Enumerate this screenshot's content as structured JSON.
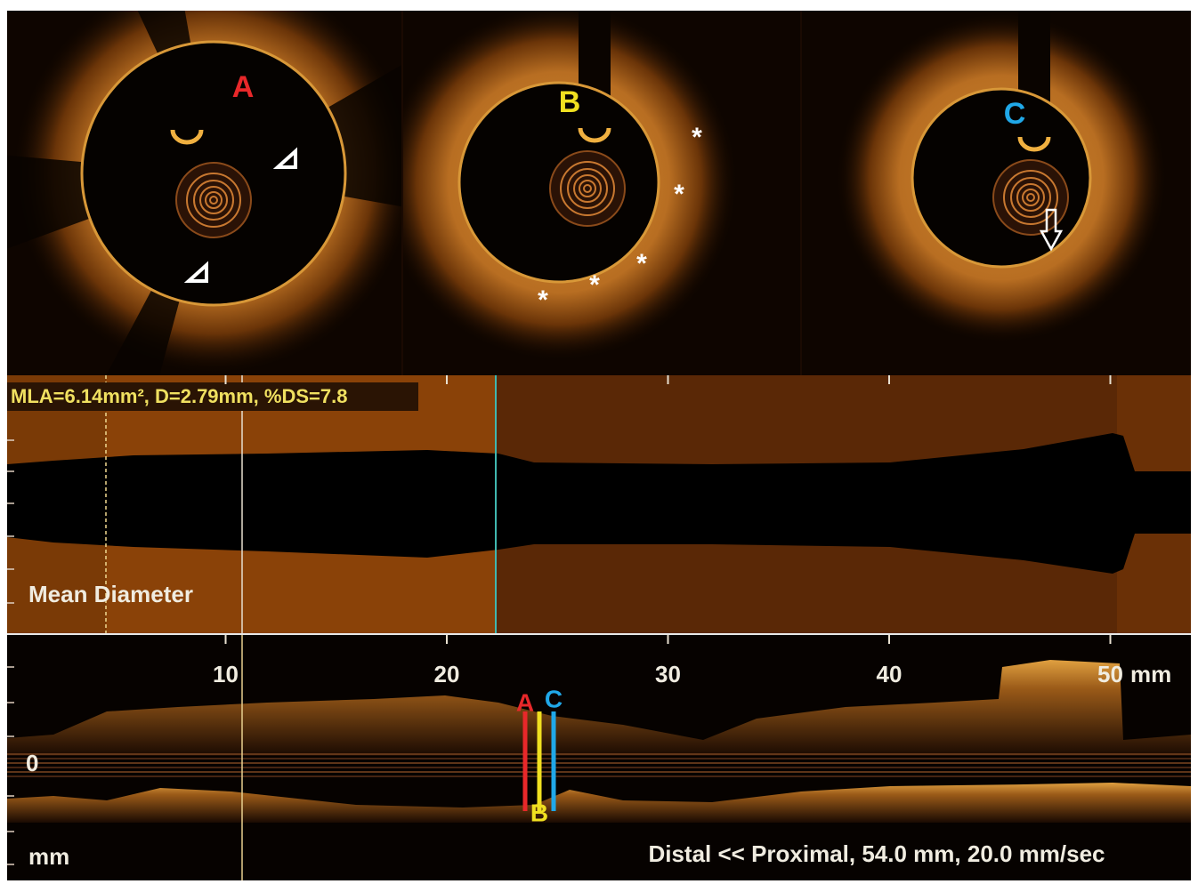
{
  "cross_sections": [
    {
      "label": "A"
    },
    {
      "label": "B",
      "annotations": [
        "*",
        "*",
        "*",
        "*",
        "*"
      ]
    },
    {
      "label": "C"
    }
  ],
  "diameter_profile": {
    "measurement": "MLA=6.14mm², D=2.79mm, %DS=7.8",
    "title": "Mean Diameter"
  },
  "longitudinal_view": {
    "length_ticks": [
      10,
      20,
      30,
      40,
      50
    ],
    "length_unit": "mm",
    "depth_zero": 0,
    "depth_unit": "mm",
    "markers": [
      "A",
      "B",
      "C"
    ],
    "footer": "Distal << Proximal, 54.0 mm, 20.0 mm/sec"
  }
}
